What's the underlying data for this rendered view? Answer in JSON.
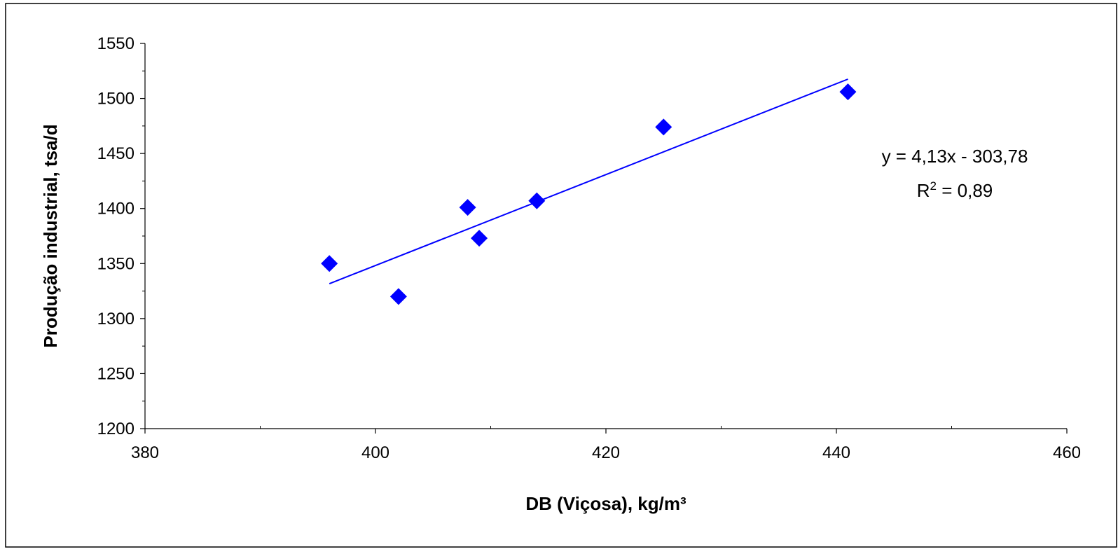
{
  "chart_data": {
    "type": "scatter",
    "title": "",
    "xlabel": "DB (Viçosa), kg/m³",
    "ylabel": "Produção industrial, tsa/d",
    "xlim": [
      380,
      460
    ],
    "ylim": [
      1200,
      1550
    ],
    "x_major_ticks": [
      380,
      400,
      420,
      440,
      460
    ],
    "x_minor_ticks": [
      390,
      410,
      430,
      450
    ],
    "y_major_ticks": [
      1200,
      1250,
      1300,
      1350,
      1400,
      1450,
      1500,
      1550
    ],
    "y_minor_ticks": [
      1225,
      1275,
      1325,
      1375,
      1425,
      1475,
      1525
    ],
    "x_tick_labels": [
      "380",
      "400",
      "420",
      "440",
      "460"
    ],
    "y_tick_labels": [
      "1200",
      "1250",
      "1300",
      "1350",
      "1400",
      "1450",
      "1500",
      "1550"
    ],
    "grid": false,
    "series": [
      {
        "marker": "diamond",
        "color": "#0000FF",
        "points": [
          {
            "x": 396,
            "y": 1350
          },
          {
            "x": 402,
            "y": 1320
          },
          {
            "x": 408,
            "y": 1401
          },
          {
            "x": 409,
            "y": 1373
          },
          {
            "x": 414,
            "y": 1407
          },
          {
            "x": 425,
            "y": 1474
          },
          {
            "x": 441,
            "y": 1506
          }
        ]
      }
    ],
    "trendline": {
      "type": "linear",
      "slope": 4.13,
      "intercept": -303.78,
      "x_range": [
        396,
        441
      ],
      "color": "#0000FF"
    },
    "annotations": {
      "equation": "y = 4,13x - 303,78",
      "r2_prefix": "R",
      "r2_exp": "2",
      "r2_value": " = 0,89"
    }
  }
}
